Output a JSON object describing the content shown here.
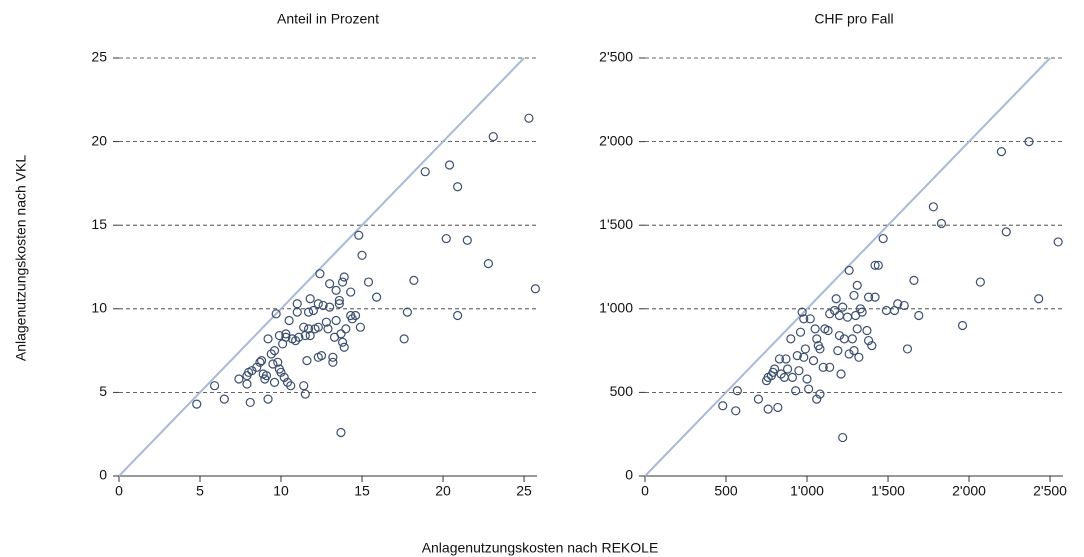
{
  "chart_data": [
    {
      "type": "scatter",
      "title": "Anteil in Prozent",
      "xlabel": "Anlagenutzungskosten nach REKOLE",
      "ylabel": "Anlagenutzungskosten nach VKL",
      "xlim": [
        0,
        25.8
      ],
      "ylim": [
        0,
        25
      ],
      "xticks": [
        0,
        5,
        10,
        15,
        20,
        25
      ],
      "yticks": [
        0,
        5,
        10,
        15,
        20,
        25
      ],
      "grid": true,
      "color": "#3d4f6e",
      "line_color": "#a9b9d6",
      "x": [
        4.8,
        5.9,
        6.5,
        7.4,
        7.9,
        7.9,
        8.0,
        8.1,
        8.2,
        8.5,
        8.7,
        8.8,
        8.9,
        9.0,
        9.1,
        9.2,
        9.2,
        9.4,
        9.5,
        9.6,
        9.6,
        9.7,
        9.8,
        9.9,
        9.9,
        10.0,
        10.1,
        10.2,
        10.3,
        10.3,
        10.4,
        10.5,
        10.6,
        10.7,
        10.9,
        11.0,
        11.0,
        11.1,
        11.4,
        11.4,
        11.5,
        11.5,
        11.6,
        11.7,
        11.7,
        11.8,
        11.8,
        12.0,
        12.1,
        12.3,
        12.3,
        12.3,
        12.4,
        12.5,
        12.6,
        12.8,
        12.9,
        13.0,
        13.0,
        13.2,
        13.2,
        13.3,
        13.4,
        13.4,
        13.6,
        13.6,
        13.7,
        13.7,
        13.8,
        13.8,
        13.9,
        13.9,
        14.0,
        14.3,
        14.3,
        14.4,
        14.6,
        14.8,
        14.9,
        15.0,
        15.4,
        15.9,
        17.6,
        17.8,
        18.2,
        18.9,
        20.2,
        20.4,
        20.9,
        20.9,
        21.5,
        22.8,
        23.1,
        25.3,
        25.7
      ],
      "values": [
        4.3,
        5.4,
        4.6,
        5.8,
        5.5,
        6.0,
        6.2,
        4.4,
        6.3,
        6.5,
        6.8,
        6.9,
        6.1,
        5.8,
        6.0,
        4.6,
        8.2,
        7.3,
        6.7,
        5.6,
        7.5,
        9.7,
        6.8,
        6.4,
        8.4,
        6.2,
        7.9,
        5.9,
        8.3,
        8.5,
        5.6,
        9.3,
        5.4,
        8.2,
        8.1,
        9.8,
        10.3,
        8.3,
        5.4,
        8.9,
        4.9,
        8.4,
        6.9,
        8.8,
        9.8,
        8.4,
        10.6,
        9.9,
        8.8,
        7.1,
        8.9,
        10.3,
        12.1,
        7.2,
        10.2,
        9.2,
        8.8,
        11.5,
        10.1,
        7.1,
        6.8,
        8.3,
        9.3,
        11.1,
        10.5,
        10.3,
        8.5,
        2.6,
        8.0,
        11.6,
        11.9,
        7.7,
        8.8,
        9.6,
        11.0,
        9.4,
        9.6,
        14.4,
        8.9,
        13.2,
        11.6,
        10.7,
        8.2,
        9.8,
        11.7,
        18.2,
        14.2,
        18.6,
        9.6,
        17.3,
        14.1,
        12.7,
        20.3,
        21.4,
        11.2
      ]
    },
    {
      "type": "scatter",
      "title": "CHF pro Fall",
      "xlim": [
        0,
        2580
      ],
      "ylim": [
        0,
        2500
      ],
      "xticks": [
        0,
        500,
        {
          "value": 1000,
          "label": "1'000"
        },
        {
          "value": 1500,
          "label": "1'500"
        },
        {
          "value": 2000,
          "label": "2'000"
        },
        {
          "value": 2500,
          "label": "2'500"
        }
      ],
      "yticks": [
        0,
        500,
        {
          "value": 1000,
          "label": "1'000"
        },
        {
          "value": 1500,
          "label": "1'500"
        },
        {
          "value": 2000,
          "label": "2'000"
        },
        {
          "value": 2500,
          "label": "2'500"
        }
      ],
      "grid": true,
      "color": "#3d4f6e",
      "line_color": "#a9b9d6",
      "x": [
        480,
        560,
        570,
        700,
        750,
        760,
        760,
        780,
        790,
        800,
        820,
        830,
        840,
        860,
        870,
        880,
        900,
        910,
        930,
        940,
        950,
        960,
        970,
        980,
        980,
        990,
        1000,
        1010,
        1020,
        1040,
        1050,
        1060,
        1060,
        1070,
        1080,
        1080,
        1100,
        1110,
        1130,
        1140,
        1140,
        1170,
        1180,
        1190,
        1200,
        1200,
        1210,
        1220,
        1230,
        1220,
        1250,
        1260,
        1260,
        1280,
        1290,
        1290,
        1300,
        1310,
        1310,
        1320,
        1330,
        1340,
        1370,
        1380,
        1380,
        1400,
        1420,
        1420,
        1440,
        1470,
        1490,
        1540,
        1560,
        1600,
        1620,
        1660,
        1690,
        1780,
        1830,
        1960,
        2070,
        2200,
        2230,
        2370,
        2430,
        2550
      ],
      "values": [
        420,
        390,
        510,
        460,
        570,
        400,
        590,
        600,
        620,
        640,
        410,
        700,
        610,
        590,
        700,
        640,
        820,
        590,
        510,
        720,
        630,
        860,
        980,
        940,
        710,
        760,
        580,
        520,
        940,
        690,
        880,
        820,
        460,
        780,
        760,
        490,
        650,
        880,
        870,
        650,
        970,
        990,
        1060,
        750,
        960,
        840,
        610,
        1010,
        820,
        230,
        950,
        730,
        1230,
        820,
        750,
        1080,
        960,
        1140,
        880,
        710,
        1000,
        980,
        870,
        1070,
        810,
        780,
        1070,
        1260,
        1260,
        1420,
        990,
        990,
        1030,
        1020,
        760,
        1170,
        960,
        1610,
        1510,
        900,
        1160,
        1940,
        1460,
        2000,
        1060,
        1400
      ]
    }
  ]
}
